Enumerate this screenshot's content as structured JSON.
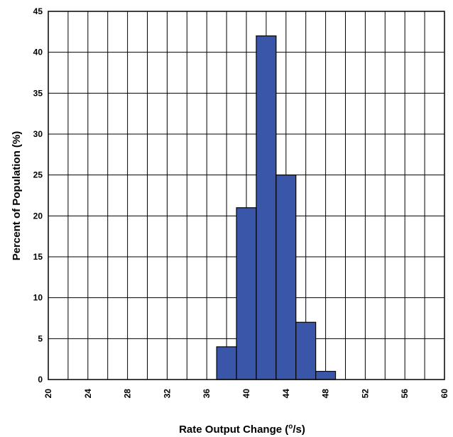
{
  "chart_data": {
    "type": "bar",
    "title": "",
    "xlabel": "Rate Output Change (",
    "xlabel_superscript": "o",
    "xlabel_suffix": "/s)",
    "ylabel": "Percent of Population (%)",
    "xlim": [
      20,
      60
    ],
    "ylim": [
      0,
      45
    ],
    "x_ticks": [
      20,
      24,
      28,
      32,
      36,
      40,
      44,
      48,
      52,
      56,
      60
    ],
    "y_ticks": [
      0,
      5,
      10,
      15,
      20,
      25,
      30,
      35,
      40,
      45
    ],
    "x_minor_step": 2,
    "grid": true,
    "bar_color": "#3a56a8",
    "bins": [
      {
        "x0": 37,
        "x1": 39,
        "value": 4
      },
      {
        "x0": 39,
        "x1": 41,
        "value": 21
      },
      {
        "x0": 41,
        "x1": 43,
        "value": 42
      },
      {
        "x0": 43,
        "x1": 45,
        "value": 25
      },
      {
        "x0": 45,
        "x1": 47,
        "value": 7
      },
      {
        "x0": 47,
        "x1": 49,
        "value": 1
      }
    ]
  }
}
